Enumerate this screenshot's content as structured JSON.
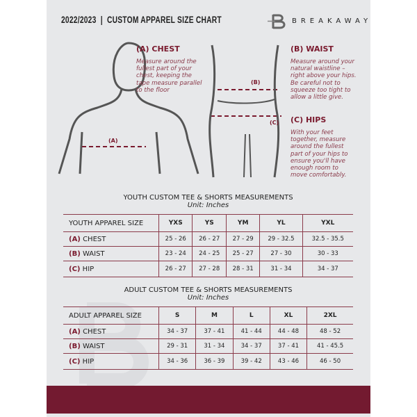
{
  "header": {
    "title": "2022/2023  |  CUSTOM APPAREL SIZE CHART",
    "brand": "BREAKAWAY"
  },
  "guide": {
    "chest": {
      "heading": "(A) CHEST",
      "text": "Measure around the fullest part of your chest, keeping the tape measure parallel to the floor",
      "marker": "(A)"
    },
    "waist": {
      "heading": "(B) WAIST",
      "text": "Measure around your natural waistline – right above your hips. Be careful not to squeeze too tight to allow a little give.",
      "marker": "(B)"
    },
    "hips": {
      "heading": "(C) HIPS",
      "text": "With your feet together, measure around the fullest part of your hips to ensure you'll have enough room to move comfortably.",
      "marker": "(C)"
    }
  },
  "youth": {
    "title": "YOUTH CUSTOM TEE & SHORTS MEASUREMENTS",
    "unit": "Unit: Inches",
    "header": [
      "YOUTH APPAREL SIZE",
      "YXS",
      "YS",
      "YM",
      "YL",
      "YXL"
    ],
    "rows": [
      {
        "code": "(A)",
        "name": "CHEST",
        "values": [
          "25 - 26",
          "26 - 27",
          "27 - 29",
          "29 - 32.5",
          "32.5 - 35.5"
        ]
      },
      {
        "code": "(B)",
        "name": "WAIST",
        "values": [
          "23 - 24",
          "24 - 25",
          "25 - 27",
          "27 - 30",
          "30 - 33"
        ]
      },
      {
        "code": "(C)",
        "name": "HIP",
        "values": [
          "26 - 27",
          "27 - 28",
          "28 - 31",
          "31 - 34",
          "34 - 37"
        ]
      }
    ]
  },
  "adult": {
    "title": "ADULT CUSTOM TEE & SHORTS MEASUREMENTS",
    "unit": "Unit: Inches",
    "header": [
      "ADULT APPAREL SIZE",
      "S",
      "M",
      "L",
      "XL",
      "2XL"
    ],
    "rows": [
      {
        "code": "(A)",
        "name": "CHEST",
        "values": [
          "34 - 37",
          "37 - 41",
          "41 - 44",
          "44 - 48",
          "48 - 52"
        ]
      },
      {
        "code": "(B)",
        "name": "WAIST",
        "values": [
          "29 - 31",
          "31 - 34",
          "34 - 37",
          "37 - 41",
          "41 - 45.5"
        ]
      },
      {
        "code": "(C)",
        "name": "HIP",
        "values": [
          "34 - 36",
          "36 - 39",
          "39 - 42",
          "43 - 46",
          "46 - 50"
        ]
      }
    ]
  },
  "colors": {
    "accent": "#731a30",
    "panel": "#e7e8ea"
  }
}
